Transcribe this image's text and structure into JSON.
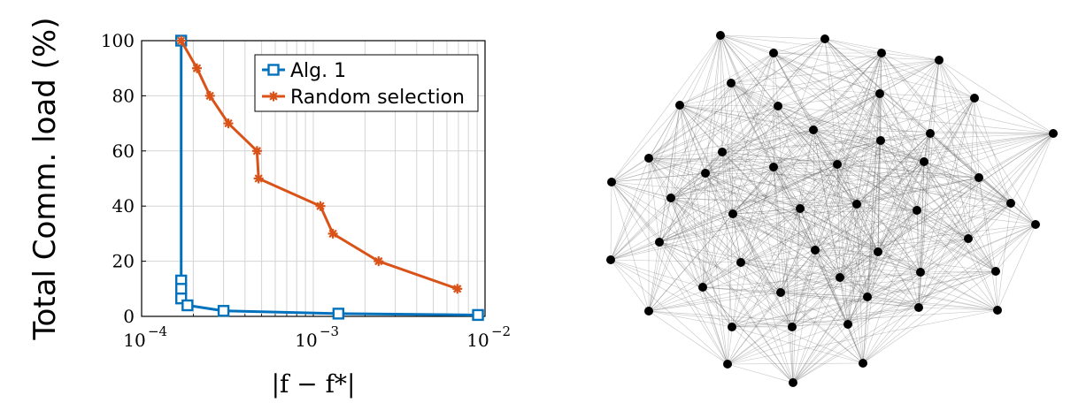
{
  "chart_data": {
    "type": "line",
    "title": "",
    "xlabel": "|f − f*|",
    "ylabel": "Total Comm. load (%)",
    "xscale": "log",
    "xlim": [
      0.0001,
      0.01
    ],
    "ylim": [
      0,
      100
    ],
    "yticks": [
      0,
      20,
      40,
      60,
      80,
      100
    ],
    "ytick_labels": [
      "0",
      "20",
      "40",
      "60",
      "80",
      "100"
    ],
    "xticks": [
      0.0001,
      0.001,
      0.01
    ],
    "xtick_labels": [
      {
        "base": "10",
        "exp": "−4"
      },
      {
        "base": "10",
        "exp": "−3"
      },
      {
        "base": "10",
        "exp": "−2"
      }
    ],
    "grid": true,
    "legend": "top-right",
    "series": [
      {
        "name": "Alg. 1",
        "color": "#0072BD",
        "marker": "square",
        "points": [
          {
            "x": 0.00017,
            "y": 100
          },
          {
            "x": 0.00017,
            "y": 13
          },
          {
            "x": 0.00017,
            "y": 10
          },
          {
            "x": 0.00017,
            "y": 6.5
          },
          {
            "x": 0.000185,
            "y": 4
          },
          {
            "x": 0.0003,
            "y": 2
          },
          {
            "x": 0.0014,
            "y": 1
          },
          {
            "x": 0.0091,
            "y": 0.5
          }
        ]
      },
      {
        "name": "Random selection",
        "color": "#D95319",
        "marker": "star",
        "points": [
          {
            "x": 0.00017,
            "y": 100
          },
          {
            "x": 0.00021,
            "y": 90
          },
          {
            "x": 0.00025,
            "y": 80
          },
          {
            "x": 0.00032,
            "y": 70
          },
          {
            "x": 0.00047,
            "y": 60
          },
          {
            "x": 0.00048,
            "y": 50
          },
          {
            "x": 0.0011,
            "y": 40
          },
          {
            "x": 0.0013,
            "y": 30
          },
          {
            "x": 0.0024,
            "y": 20
          },
          {
            "x": 0.0069,
            "y": 10
          }
        ]
      }
    ]
  },
  "graph": {
    "node_color": "#000000",
    "edge_color": "#555555",
    "node_count": 50
  }
}
